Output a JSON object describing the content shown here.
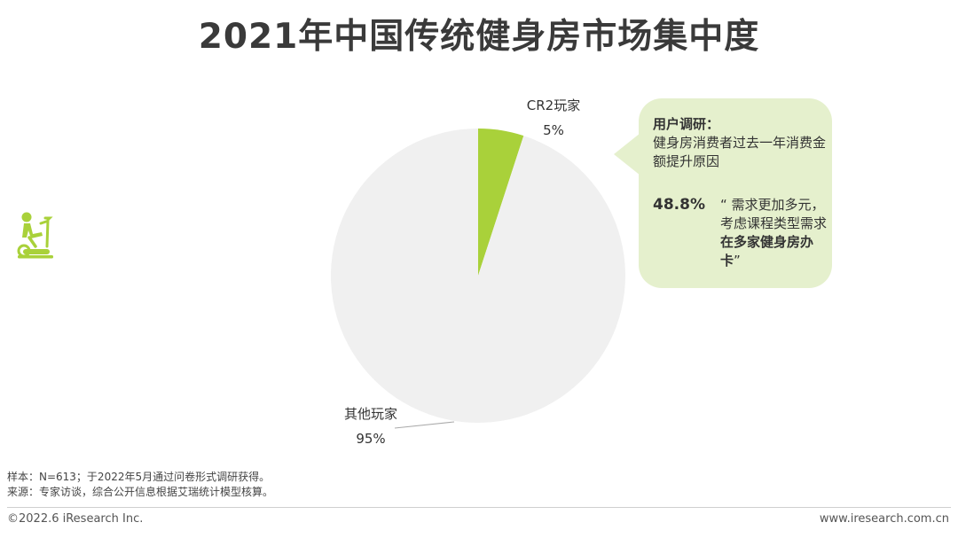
{
  "title": "2021年中国传统健身房市场集中度",
  "chart_data": {
    "type": "pie",
    "slices": [
      {
        "name": "CR2玩家",
        "value": 5,
        "label": "5%",
        "color": "#a9d13a"
      },
      {
        "name": "其他玩家",
        "value": 95,
        "label": "95%",
        "color": "#f0f0f0"
      }
    ]
  },
  "callout": {
    "heading": "用户调研：",
    "subheading": "健身房消费者过去一年消费金额提升原因",
    "percent": "48.8%",
    "quote_part1": "“ 需求更加多元，考虑课程类型需求",
    "quote_bold": "在多家健身房办卡",
    "quote_end": "”",
    "icon": "exercise-bike-icon",
    "bg_color": "#e5f0cd",
    "icon_color": "#a9d13a"
  },
  "notes": {
    "sample": "样本：N=613；于2022年5月通过问卷形式调研获得。",
    "source": "来源：专家访谈，综合公开信息根据艾瑞统计模型核算。"
  },
  "footer": {
    "copyright": "©2022.6 iResearch Inc.",
    "url": "www.iresearch.com.cn"
  }
}
